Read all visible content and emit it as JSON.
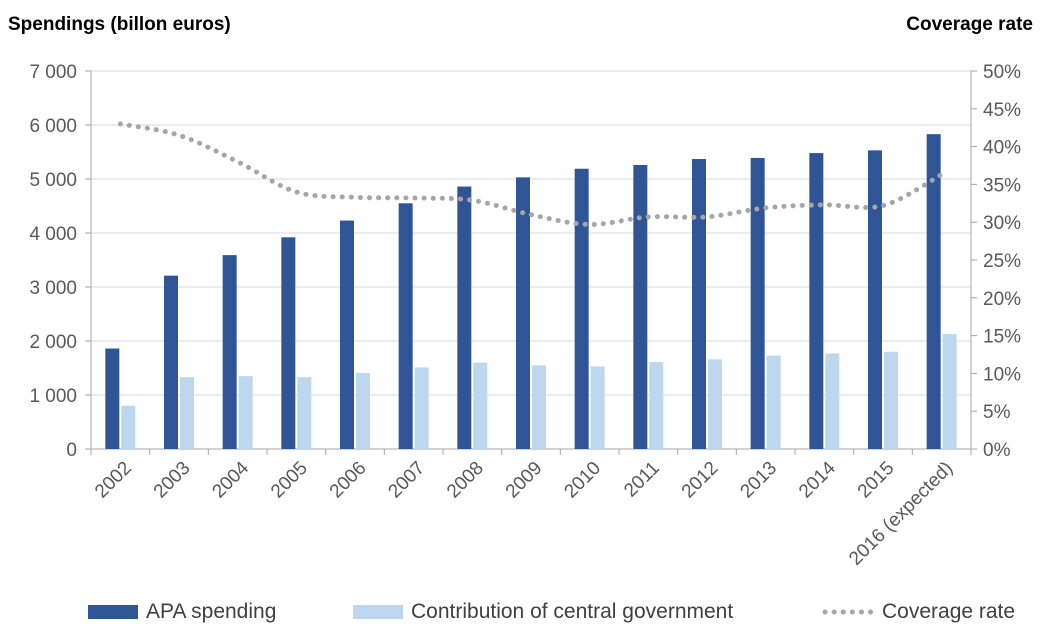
{
  "chart_data": {
    "type": "bar",
    "ylabel": "Spendings (billon euros)",
    "y2label": "Coverage rate",
    "categories": [
      "2002",
      "2003",
      "2004",
      "2005",
      "2006",
      "2007",
      "2008",
      "2009",
      "2010",
      "2011",
      "2012",
      "2013",
      "2014",
      "2015",
      "2016 (expected)"
    ],
    "ylim": [
      0,
      7000
    ],
    "y2lim": [
      0,
      0.5
    ],
    "yticks": [
      "0",
      "1 000",
      "2 000",
      "3 000",
      "4 000",
      "5 000",
      "6 000",
      "7 000"
    ],
    "y2ticks": [
      "0%",
      "5%",
      "10%",
      "15%",
      "20%",
      "25%",
      "30%",
      "35%",
      "40%",
      "45%",
      "50%"
    ],
    "grid": true,
    "legend_position": "bottom",
    "series": [
      {
        "name": "APA spending",
        "kind": "bar",
        "color": "#2f5597",
        "values": [
          1860,
          3210,
          3590,
          3920,
          4230,
          4550,
          4860,
          5030,
          5190,
          5260,
          5370,
          5390,
          5480,
          5530,
          5830
        ]
      },
      {
        "name": "Contribution of central government",
        "kind": "bar",
        "color": "#bdd7ee",
        "values": [
          800,
          1330,
          1350,
          1330,
          1410,
          1510,
          1600,
          1550,
          1530,
          1610,
          1660,
          1730,
          1770,
          1800,
          2130
        ]
      },
      {
        "name": "Coverage rate",
        "kind": "line",
        "axis": "right",
        "style": "dotted",
        "color": "#a6a6a6",
        "values": [
          0.43,
          0.415,
          0.38,
          0.34,
          0.333,
          0.332,
          0.329,
          0.31,
          0.297,
          0.307,
          0.307,
          0.319,
          0.323,
          0.322,
          0.363
        ]
      }
    ]
  }
}
